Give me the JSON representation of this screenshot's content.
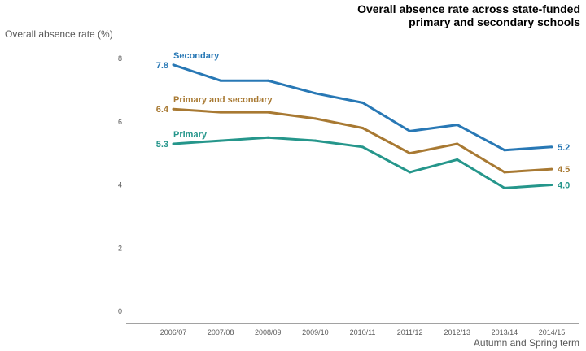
{
  "chart_data": {
    "type": "line",
    "title_lines": [
      "Overall absence rate across state-funded",
      "primary and secondary schools"
    ],
    "ylabel": "Overall absence rate (%)",
    "xlabel": "Autumn and Spring term",
    "ylim": [
      0,
      8
    ],
    "yticks": [
      "0",
      "2",
      "4",
      "6",
      "8"
    ],
    "grid": false,
    "categories": [
      "2006/07",
      "2007/08",
      "2008/09",
      "2009/10",
      "2010/11",
      "2011/12",
      "2012/13",
      "2013/14",
      "2014/15"
    ],
    "series": [
      {
        "name": "Secondary",
        "color": "#2878b5",
        "values": [
          7.8,
          7.3,
          7.3,
          6.9,
          6.6,
          5.7,
          5.9,
          5.1,
          5.2
        ],
        "start_label": "7.8",
        "end_label": "5.2"
      },
      {
        "name": "Primary and secondary",
        "color": "#a87932",
        "values": [
          6.4,
          6.3,
          6.3,
          6.1,
          5.8,
          5.0,
          5.3,
          4.4,
          4.5
        ],
        "start_label": "6.4",
        "end_label": "4.5"
      },
      {
        "name": "Primary",
        "color": "#25968b",
        "values": [
          5.3,
          5.4,
          5.5,
          5.4,
          5.2,
          4.4,
          4.8,
          3.9,
          4.0
        ],
        "start_label": "5.3",
        "end_label": "4.0"
      }
    ]
  }
}
